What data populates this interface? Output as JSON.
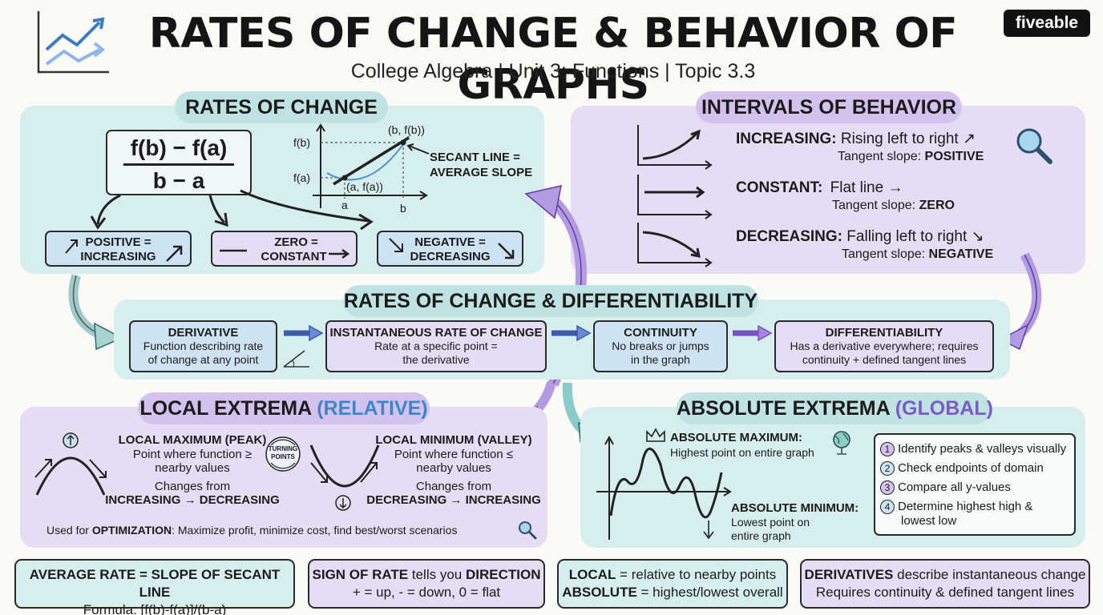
{
  "header": {
    "title": "RATES OF CHANGE & BEHAVIOR OF GRAPHS",
    "subtitle": "College Algebra | Unit 3: Functions | Topic 3.3",
    "brand": "fiveable",
    "logo_icon": "trend-arrows-icon"
  },
  "rates": {
    "title": "RATES OF CHANGE",
    "formula_num": "f(b) − f(a)",
    "formula_den": "b − a",
    "graph": {
      "fb": "f(b)",
      "fa": "f(a)",
      "pt_b": "(b, f(b))",
      "pt_a": "(a, f(a))",
      "a": "a",
      "b": "b"
    },
    "secant_l1": "SECANT LINE =",
    "secant_l2": "AVERAGE SLOPE",
    "pos_l1": "POSITIVE =",
    "pos_l2": "INCREASING",
    "zero_l1": "ZERO =",
    "zero_l2": "CONSTANT",
    "neg_l1": "NEGATIVE =",
    "neg_l2": "DECREASING"
  },
  "intervals": {
    "title": "INTERVALS OF BEHAVIOR",
    "inc_label": "INCREASING:",
    "inc_desc": "Rising left to right ↗",
    "inc_t": "Tangent slope: ",
    "inc_v": "POSITIVE",
    "con_label": "CONSTANT:",
    "con_desc": "Flat line →",
    "con_t": "Tangent slope: ",
    "con_v": "ZERO",
    "dec_label": "DECREASING:",
    "dec_desc": "Falling left to right ↘",
    "dec_t": "Tangent slope: ",
    "dec_v": "NEGATIVE",
    "icon": "magnifier-icon"
  },
  "diff": {
    "title": "RATES OF CHANGE & DIFFERENTIABILITY",
    "b1_t": "DERIVATIVE",
    "b1_d1": "Function describing rate",
    "b1_d2": "of change at any point",
    "b2_t": "INSTANTANEOUS RATE OF CHANGE",
    "b2_d1": "Rate at a specific point =",
    "b2_d2": "the derivative",
    "b3_t": "CONTINUITY",
    "b3_d1": "No breaks or jumps",
    "b3_d2": "in the graph",
    "b4_t": "DIFFERENTIABILITY",
    "b4_d1": "Has a derivative everywhere; requires",
    "b4_d2": "continuity + defined tangent lines"
  },
  "local": {
    "title": "LOCAL EXTREMA ",
    "title_accent": "(RELATIVE)",
    "max_t": "LOCAL MAXIMUM (PEAK)",
    "max_d1": "Point where function ≥",
    "max_d2": "nearby values",
    "max_c1": "Changes from",
    "max_c2": "INCREASING → DECREASING",
    "turn_l1": "TURNING",
    "turn_l2": "POINTS",
    "min_t": "LOCAL MINIMUM (VALLEY)",
    "min_d1": "Point where function ≤",
    "min_d2": "nearby values",
    "min_c1": "Changes from",
    "min_c2": "DECREASING → INCREASING",
    "opt_pre": "Used for ",
    "opt_b": "OPTIMIZATION",
    "opt_post": ": Maximize profit, minimize cost, find best/worst scenarios"
  },
  "absolute": {
    "title": "ABSOLUTE EXTREMA ",
    "title_accent": "(GLOBAL)",
    "max_t": "ABSOLUTE MAXIMUM:",
    "max_d": "Highest point on entire graph",
    "min_t": "ABSOLUTE MINIMUM:",
    "min_d1": "Lowest point on",
    "min_d2": "entire graph",
    "steps": [
      {
        "n": "1",
        "text": "Identify peaks & valleys visually"
      },
      {
        "n": "2",
        "text": "Check endpoints of domain"
      },
      {
        "n": "3",
        "text": "Compare all y-values"
      },
      {
        "n": "4",
        "text": "Determine highest high &",
        "text2": "lowest low"
      }
    ]
  },
  "footer": {
    "f1_l1": "AVERAGE RATE = SLOPE OF SECANT LINE",
    "f1_l2": "Formula: [f(b)-f(a)]/(b-a)",
    "f2_b1": "SIGN OF RATE",
    "f2_m": " tells you ",
    "f2_b2": "DIRECTION",
    "f2_l2": "+ = up, - = down, 0 = flat",
    "f3_b1": "LOCAL",
    "f3_r1": " = relative to nearby points",
    "f3_b2": "ABSOLUTE",
    "f3_r2": " = highest/lowest overall",
    "f4_b1": "DERIVATIVES",
    "f4_r1": " describe instantaneous change",
    "f4_l2": "Requires continuity & defined tangent lines"
  },
  "colors": {
    "teal_panel": "#d6eeee",
    "lavender_panel": "#e6dcf4",
    "teal_pill": "#bfe3e3",
    "lavender_pill": "#d3c2ee",
    "blue_box": "#cde3f2",
    "accent_blue": "#3f86c8",
    "accent_purple": "#7c5cc4"
  }
}
